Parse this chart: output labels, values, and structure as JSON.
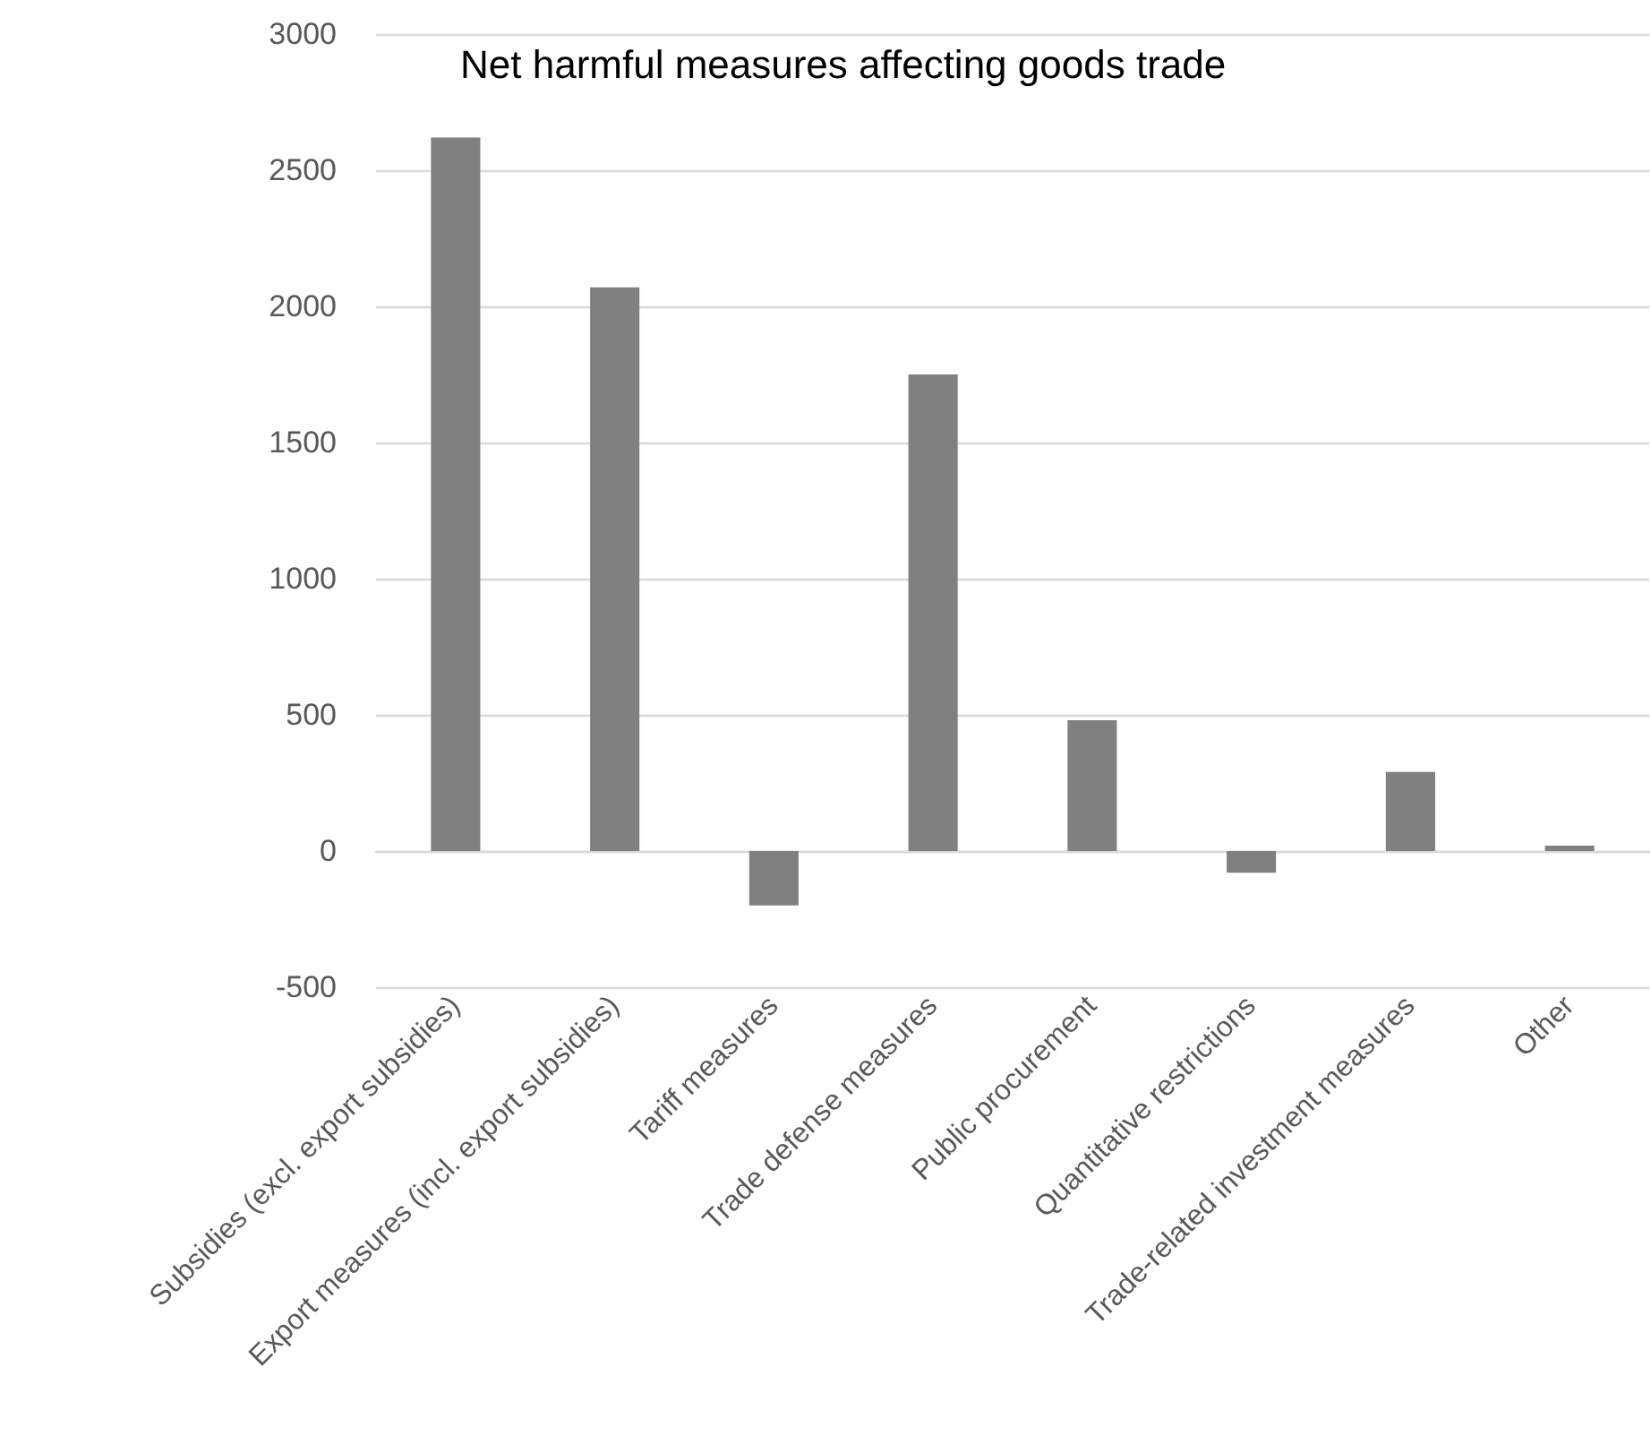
{
  "chart_data": {
    "type": "bar",
    "title": "Net harmful measures affecting goods trade",
    "categories": [
      "Subsidies (excl. export subsidies)",
      "Export measures (incl. export subsidies)",
      "Tariff measures",
      "Trade defense measures",
      "Public procurement",
      "Quantitative restrictions",
      "Trade-related investment measures",
      "Other"
    ],
    "values": [
      2620,
      2070,
      -200,
      1750,
      480,
      -80,
      290,
      20
    ],
    "color": "#808080",
    "ylim": [
      -500,
      3000
    ],
    "yticks": [
      -500,
      0,
      500,
      1000,
      1500,
      2000,
      2500,
      3000
    ],
    "grid": "y"
  }
}
